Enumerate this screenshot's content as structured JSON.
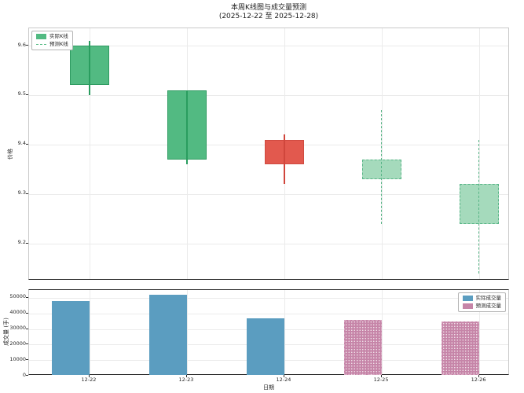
{
  "title": "本周K线图与成交量预测",
  "subtitle": "(2025-12-22 至 2025-12-28)",
  "xlabel": "日期",
  "price_axis": {
    "ylabel": "价格",
    "legend": [
      {
        "label": "实际K线",
        "swatch": "patch",
        "color": "#52ba82"
      },
      {
        "label": "预测K线",
        "swatch": "dashed-line",
        "color": "#52ba82"
      }
    ]
  },
  "volume_axis": {
    "ylabel": "成交量 (手)",
    "legend": [
      {
        "label": "实际成交量",
        "swatch": "patch",
        "color": "#5b9dc0"
      },
      {
        "label": "预测成交量",
        "swatch": "hatched-patch",
        "color": "#c685a8"
      }
    ]
  },
  "chart_data": [
    {
      "type": "candlestick",
      "title": "本周K线图与成交量预测",
      "subtitle": "(2025-12-22 至 2025-12-28)",
      "xlabel": "日期",
      "ylabel": "价格",
      "ylim": [
        9.125,
        9.635
      ],
      "yticks": [
        9.2,
        9.3,
        9.4,
        9.5,
        9.6
      ],
      "grid": true,
      "legend_position": "upper left",
      "legend": [
        "实际K线",
        "预测K线"
      ],
      "categories": [
        "12-22",
        "12-23",
        "12-24",
        "12-25",
        "12-26"
      ],
      "candles": [
        {
          "date": "12-22",
          "open": 9.52,
          "high": 9.61,
          "low": 9.5,
          "close": 9.6,
          "segment": "actual",
          "direction": "up"
        },
        {
          "date": "12-23",
          "open": 9.37,
          "high": 9.51,
          "low": 9.36,
          "close": 9.51,
          "segment": "actual",
          "direction": "up"
        },
        {
          "date": "12-24",
          "open": 9.41,
          "high": 9.42,
          "low": 9.32,
          "close": 9.36,
          "segment": "actual",
          "direction": "down"
        },
        {
          "date": "12-25",
          "open": 9.33,
          "high": 9.47,
          "low": 9.24,
          "close": 9.37,
          "segment": "forecast",
          "direction": "up"
        },
        {
          "date": "12-26",
          "open": 9.24,
          "high": 9.41,
          "low": 9.14,
          "close": 9.32,
          "segment": "forecast",
          "direction": "up"
        }
      ]
    },
    {
      "type": "bar",
      "ylabel": "成交量 (手)",
      "xlabel": "日期",
      "ylim": [
        0,
        55000
      ],
      "yticks": [
        0,
        10000,
        20000,
        30000,
        40000,
        50000
      ],
      "grid": true,
      "legend_position": "upper right",
      "legend": [
        "实际成交量",
        "预测成交量"
      ],
      "categories": [
        "12-22",
        "12-23",
        "12-24",
        "12-25",
        "12-26"
      ],
      "values": [
        48000,
        52000,
        37000,
        36000,
        35000
      ],
      "segments": [
        "actual",
        "actual",
        "actual",
        "forecast",
        "forecast"
      ]
    }
  ],
  "colors": {
    "candle_up": "#52ba82",
    "candle_up_edge": "#2f9b61",
    "candle_down": "#e2594e",
    "candle_down_edge": "#cf4a40",
    "wick_up": "#2a9d5f",
    "wick_down": "#d0463c",
    "candle_forecast": "#a5dabc",
    "candle_forecast_edge": "#57b486",
    "volume_actual": "#5b9dc0",
    "volume_forecast": "#c685a8",
    "volume_forecast_edge": "#d9a9c3",
    "grid": "#ebebeb",
    "text": "#262626"
  }
}
